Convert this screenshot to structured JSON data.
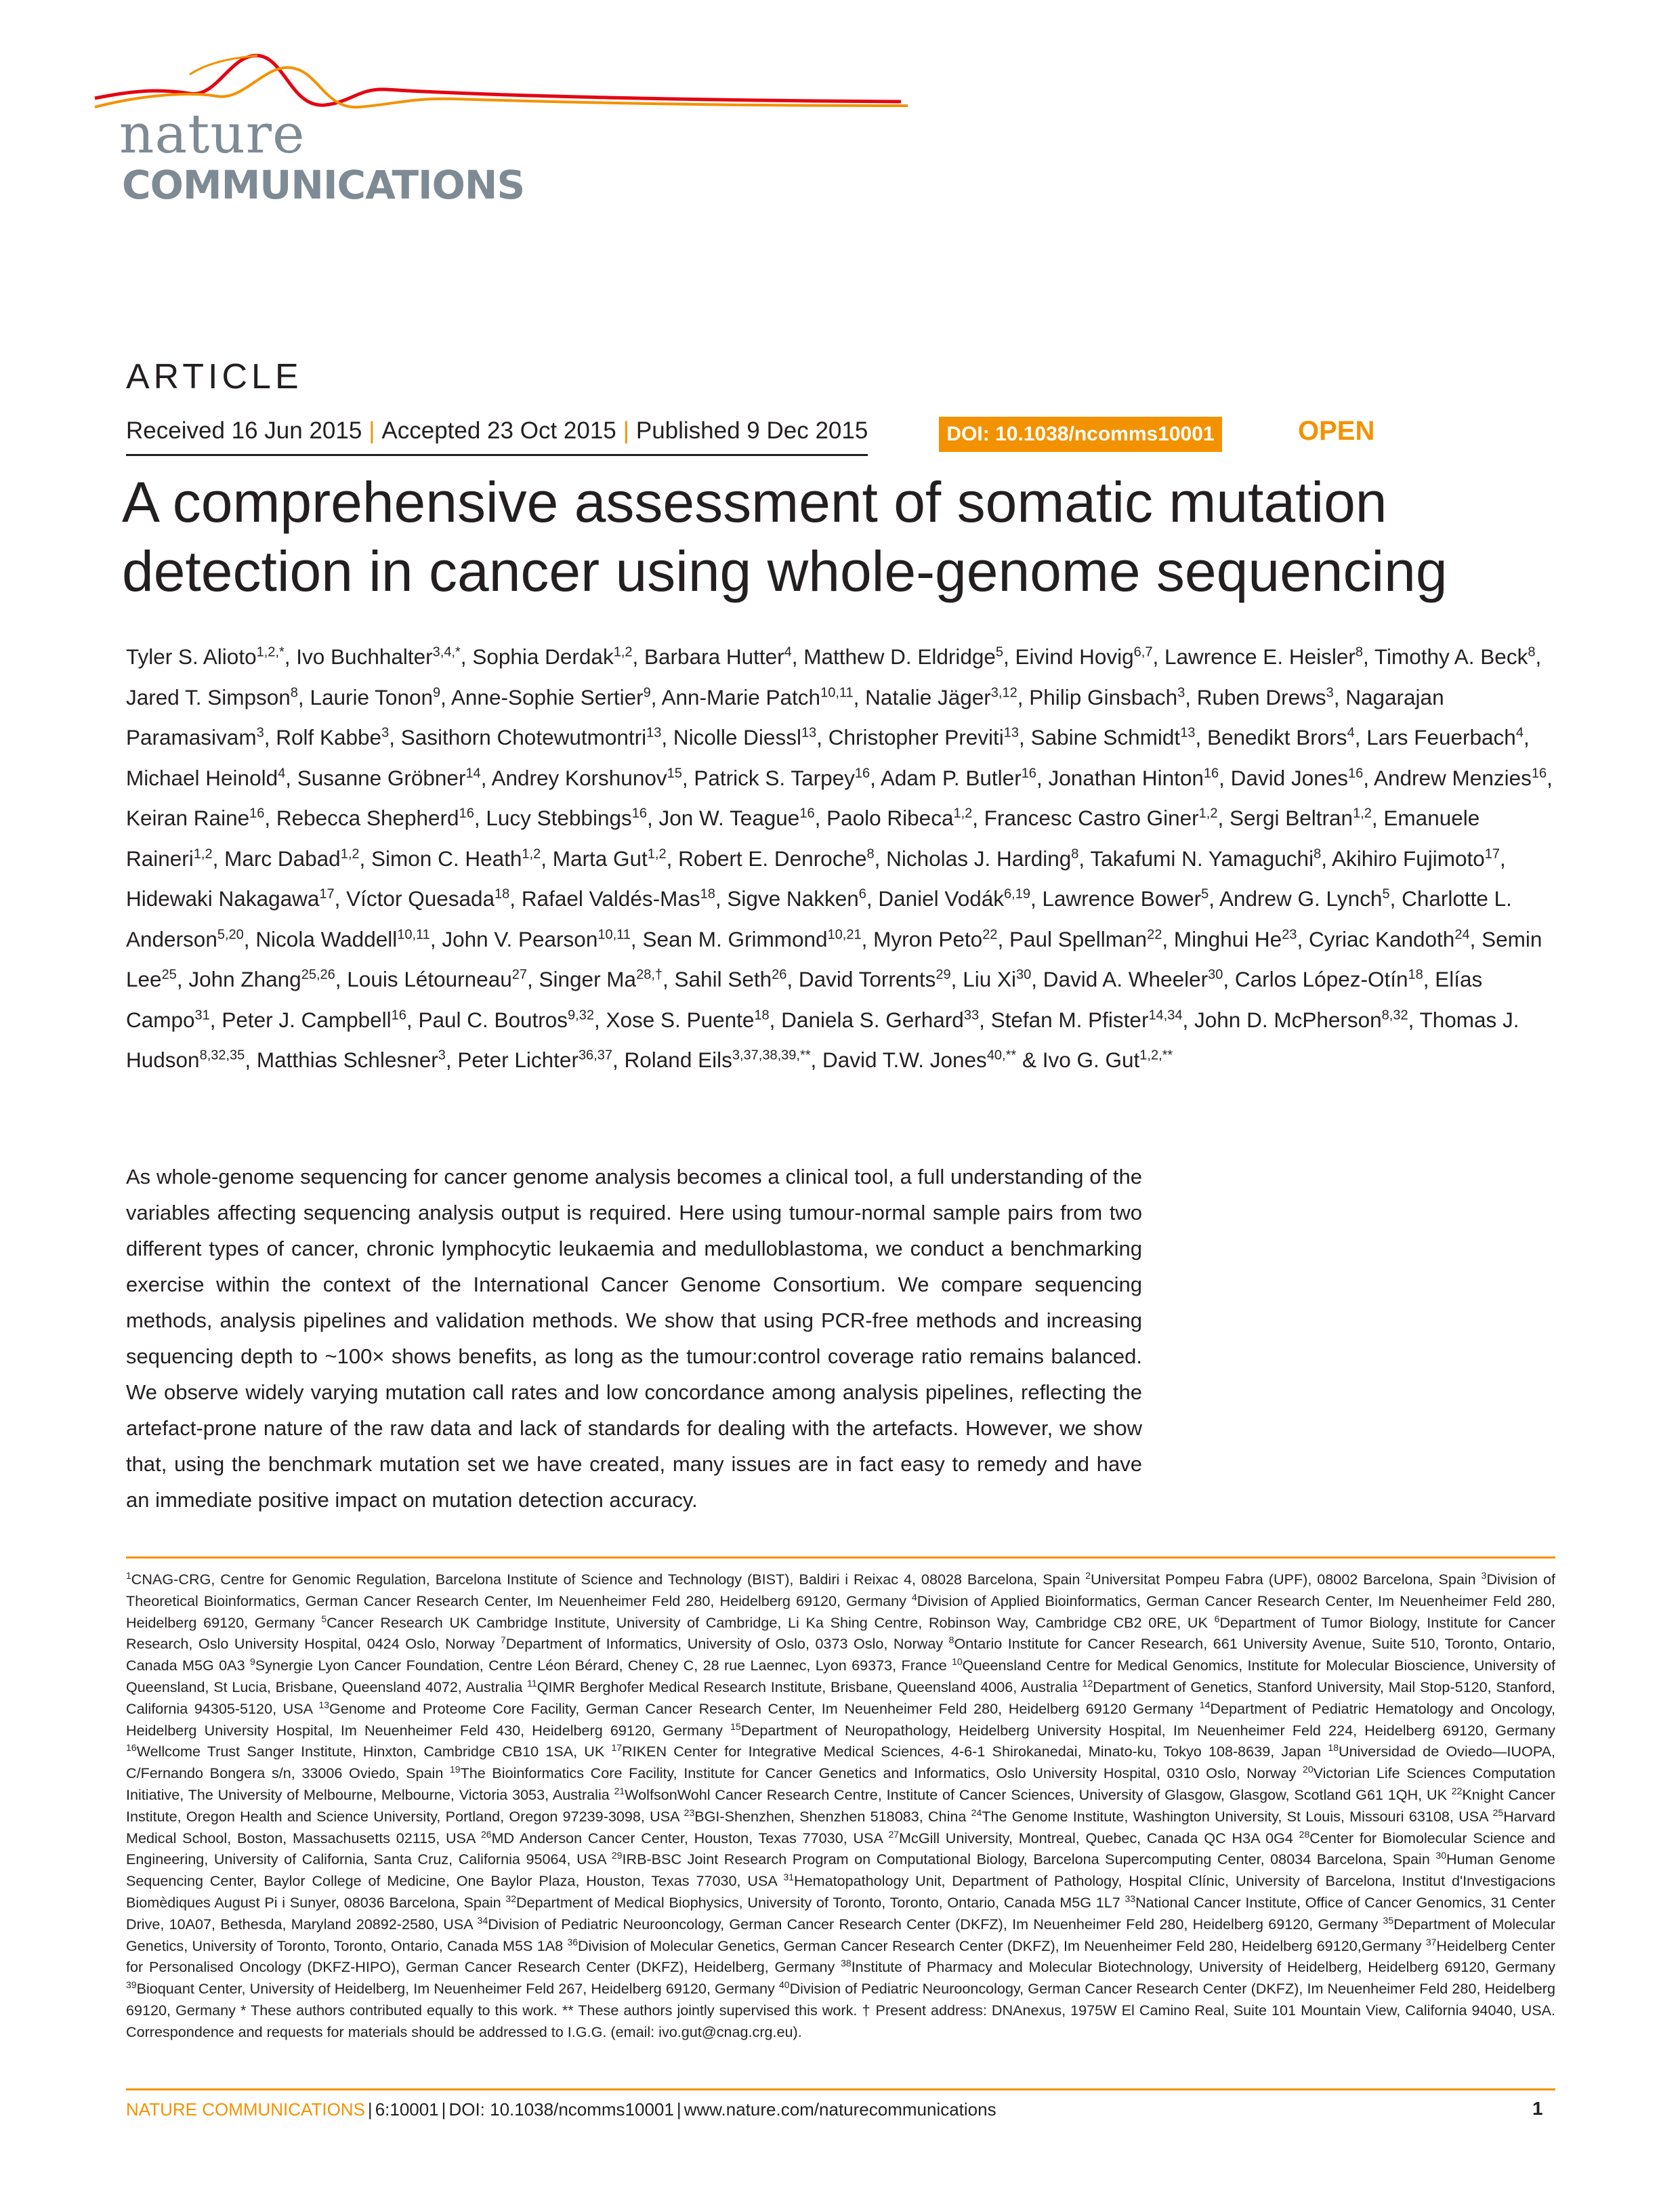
{
  "logo": {
    "line1": "nature",
    "line2": "COMMUNICATIONS",
    "colors": {
      "red": "#e30613",
      "orange": "#f39200",
      "gray": "#7e8a94"
    }
  },
  "header": {
    "section": "ARTICLE",
    "received": "Received 16 Jun 2015",
    "accepted": "Accepted 23 Oct 2015",
    "published": "Published 9 Dec 2015",
    "separator": "|",
    "doi": "DOI: 10.1038/ncomms10001",
    "access": "OPEN",
    "accent_color": "#f39200"
  },
  "title": "A comprehensive assessment of somatic mutation detection in cancer using whole-genome sequencing",
  "authors": [
    {
      "name": "Tyler S. Alioto",
      "sup": "1,2,*"
    },
    {
      "name": "Ivo Buchhalter",
      "sup": "3,4,*"
    },
    {
      "name": "Sophia Derdak",
      "sup": "1,2"
    },
    {
      "name": "Barbara Hutter",
      "sup": "4"
    },
    {
      "name": "Matthew D. Eldridge",
      "sup": "5"
    },
    {
      "name": "Eivind Hovig",
      "sup": "6,7"
    },
    {
      "name": "Lawrence E. Heisler",
      "sup": "8"
    },
    {
      "name": "Timothy A. Beck",
      "sup": "8"
    },
    {
      "name": "Jared T. Simpson",
      "sup": "8"
    },
    {
      "name": "Laurie Tonon",
      "sup": "9"
    },
    {
      "name": "Anne-Sophie Sertier",
      "sup": "9"
    },
    {
      "name": "Ann-Marie Patch",
      "sup": "10,11"
    },
    {
      "name": "Natalie Jäger",
      "sup": "3,12"
    },
    {
      "name": "Philip Ginsbach",
      "sup": "3"
    },
    {
      "name": "Ruben Drews",
      "sup": "3"
    },
    {
      "name": "Nagarajan Paramasivam",
      "sup": "3"
    },
    {
      "name": "Rolf Kabbe",
      "sup": "3"
    },
    {
      "name": "Sasithorn Chotewutmontri",
      "sup": "13"
    },
    {
      "name": "Nicolle Diessl",
      "sup": "13"
    },
    {
      "name": "Christopher Previti",
      "sup": "13"
    },
    {
      "name": "Sabine Schmidt",
      "sup": "13"
    },
    {
      "name": "Benedikt Brors",
      "sup": "4"
    },
    {
      "name": "Lars Feuerbach",
      "sup": "4"
    },
    {
      "name": "Michael Heinold",
      "sup": "4"
    },
    {
      "name": "Susanne Gröbner",
      "sup": "14"
    },
    {
      "name": "Andrey Korshunov",
      "sup": "15"
    },
    {
      "name": "Patrick S. Tarpey",
      "sup": "16"
    },
    {
      "name": "Adam P. Butler",
      "sup": "16"
    },
    {
      "name": "Jonathan Hinton",
      "sup": "16"
    },
    {
      "name": "David Jones",
      "sup": "16"
    },
    {
      "name": "Andrew Menzies",
      "sup": "16"
    },
    {
      "name": "Keiran Raine",
      "sup": "16"
    },
    {
      "name": "Rebecca Shepherd",
      "sup": "16"
    },
    {
      "name": "Lucy Stebbings",
      "sup": "16"
    },
    {
      "name": "Jon W. Teague",
      "sup": "16"
    },
    {
      "name": "Paolo Ribeca",
      "sup": "1,2"
    },
    {
      "name": "Francesc Castro Giner",
      "sup": "1,2"
    },
    {
      "name": "Sergi Beltran",
      "sup": "1,2"
    },
    {
      "name": "Emanuele Raineri",
      "sup": "1,2"
    },
    {
      "name": "Marc Dabad",
      "sup": "1,2"
    },
    {
      "name": "Simon C. Heath",
      "sup": "1,2"
    },
    {
      "name": "Marta Gut",
      "sup": "1,2"
    },
    {
      "name": "Robert E. Denroche",
      "sup": "8"
    },
    {
      "name": "Nicholas J. Harding",
      "sup": "8"
    },
    {
      "name": "Takafumi N. Yamaguchi",
      "sup": "8"
    },
    {
      "name": "Akihiro Fujimoto",
      "sup": "17"
    },
    {
      "name": "Hidewaki Nakagawa",
      "sup": "17"
    },
    {
      "name": "Víctor Quesada",
      "sup": "18"
    },
    {
      "name": "Rafael Valdés-Mas",
      "sup": "18"
    },
    {
      "name": "Sigve Nakken",
      "sup": "6"
    },
    {
      "name": "Daniel Vodák",
      "sup": "6,19"
    },
    {
      "name": "Lawrence Bower",
      "sup": "5"
    },
    {
      "name": "Andrew G. Lynch",
      "sup": "5"
    },
    {
      "name": "Charlotte L. Anderson",
      "sup": "5,20"
    },
    {
      "name": "Nicola Waddell",
      "sup": "10,11"
    },
    {
      "name": "John V. Pearson",
      "sup": "10,11"
    },
    {
      "name": "Sean M. Grimmond",
      "sup": "10,21"
    },
    {
      "name": "Myron Peto",
      "sup": "22"
    },
    {
      "name": "Paul Spellman",
      "sup": "22"
    },
    {
      "name": "Minghui He",
      "sup": "23"
    },
    {
      "name": "Cyriac Kandoth",
      "sup": "24"
    },
    {
      "name": "Semin Lee",
      "sup": "25"
    },
    {
      "name": "John Zhang",
      "sup": "25,26"
    },
    {
      "name": "Louis Létourneau",
      "sup": "27"
    },
    {
      "name": "Singer Ma",
      "sup": "28,†"
    },
    {
      "name": "Sahil Seth",
      "sup": "26"
    },
    {
      "name": "David Torrents",
      "sup": "29"
    },
    {
      "name": "Liu Xi",
      "sup": "30"
    },
    {
      "name": "David A. Wheeler",
      "sup": "30"
    },
    {
      "name": "Carlos López-Otín",
      "sup": "18"
    },
    {
      "name": "Elías Campo",
      "sup": "31"
    },
    {
      "name": "Peter J. Campbell",
      "sup": "16"
    },
    {
      "name": "Paul C. Boutros",
      "sup": "9,32"
    },
    {
      "name": "Xose S. Puente",
      "sup": "18"
    },
    {
      "name": "Daniela S. Gerhard",
      "sup": "33"
    },
    {
      "name": "Stefan M. Pfister",
      "sup": "14,34"
    },
    {
      "name": "John D. McPherson",
      "sup": "8,32"
    },
    {
      "name": "Thomas J. Hudson",
      "sup": "8,32,35"
    },
    {
      "name": "Matthias Schlesner",
      "sup": "3"
    },
    {
      "name": "Peter Lichter",
      "sup": "36,37"
    },
    {
      "name": "Roland Eils",
      "sup": "3,37,38,39,**"
    },
    {
      "name": "David T.W. Jones",
      "sup": "40,**"
    },
    {
      "name": "Ivo G. Gut",
      "sup": "1,2,**"
    }
  ],
  "abstract": "As whole-genome sequencing for cancer genome analysis becomes a clinical tool, a full understanding of the variables affecting sequencing analysis output is required. Here using tumour-normal sample pairs from two different types of cancer, chronic lymphocytic leukaemia and medulloblastoma, we conduct a benchmarking exercise within the context of the International Cancer Genome Consortium. We compare sequencing methods, analysis pipelines and validation methods. We show that using PCR-free methods and increasing sequencing depth to ~100× shows benefits, as long as the tumour:control coverage ratio remains balanced. We observe widely varying mutation call rates and low concordance among analysis pipelines, reflecting the artefact-prone nature of the raw data and lack of standards for dealing with the artefacts. However, we show that, using the benchmark mutation set we have created, many issues are in fact easy to remedy and have an immediate positive impact on mutation detection accuracy.",
  "affiliations": [
    {
      "n": "1",
      "text": "CNAG-CRG, Centre for Genomic Regulation, Barcelona Institute of Science and Technology (BIST), Baldiri i Reixac 4, 08028 Barcelona, Spain"
    },
    {
      "n": "2",
      "text": "Universitat Pompeu Fabra (UPF), 08002 Barcelona, Spain"
    },
    {
      "n": "3",
      "text": "Division of Theoretical Bioinformatics, German Cancer Research Center, Im Neuenheimer Feld 280, Heidelberg 69120, Germany"
    },
    {
      "n": "4",
      "text": "Division of Applied Bioinformatics, German Cancer Research Center, Im Neuenheimer Feld 280, Heidelberg 69120, Germany"
    },
    {
      "n": "5",
      "text": "Cancer Research UK Cambridge Institute, University of Cambridge, Li Ka Shing Centre, Robinson Way, Cambridge CB2 0RE, UK"
    },
    {
      "n": "6",
      "text": "Department of Tumor Biology, Institute for Cancer Research, Oslo University Hospital, 0424 Oslo, Norway"
    },
    {
      "n": "7",
      "text": "Department of Informatics, University of Oslo, 0373 Oslo, Norway"
    },
    {
      "n": "8",
      "text": "Ontario Institute for Cancer Research, 661 University Avenue, Suite 510, Toronto, Ontario, Canada M5G 0A3"
    },
    {
      "n": "9",
      "text": "Synergie Lyon Cancer Foundation, Centre Léon Bérard, Cheney C, 28 rue Laennec, Lyon 69373, France"
    },
    {
      "n": "10",
      "text": "Queensland Centre for Medical Genomics, Institute for Molecular Bioscience, University of Queensland, St Lucia, Brisbane, Queensland 4072, Australia"
    },
    {
      "n": "11",
      "text": "QIMR Berghofer Medical Research Institute, Brisbane, Queensland 4006, Australia"
    },
    {
      "n": "12",
      "text": "Department of Genetics, Stanford University, Mail Stop-5120, Stanford, California 94305-5120, USA"
    },
    {
      "n": "13",
      "text": "Genome and Proteome Core Facility, German Cancer Research Center, Im Neuenheimer Feld 280, Heidelberg 69120 Germany"
    },
    {
      "n": "14",
      "text": "Department of Pediatric Hematology and Oncology, Heidelberg University Hospital, Im Neuenheimer Feld 430, Heidelberg 69120, Germany"
    },
    {
      "n": "15",
      "text": "Department of Neuropathology, Heidelberg University Hospital, Im Neuenheimer Feld 224, Heidelberg 69120, Germany"
    },
    {
      "n": "16",
      "text": "Wellcome Trust Sanger Institute, Hinxton, Cambridge CB10 1SA, UK"
    },
    {
      "n": "17",
      "text": "RIKEN Center for Integrative Medical Sciences, 4-6-1 Shirokanedai, Minato-ku, Tokyo 108-8639, Japan"
    },
    {
      "n": "18",
      "text": "Universidad de Oviedo—IUOPA, C/Fernando Bongera s/n, 33006 Oviedo, Spain"
    },
    {
      "n": "19",
      "text": "The Bioinformatics Core Facility, Institute for Cancer Genetics and Informatics, Oslo University Hospital, 0310 Oslo, Norway"
    },
    {
      "n": "20",
      "text": "Victorian Life Sciences Computation Initiative, The University of Melbourne, Melbourne, Victoria 3053, Australia"
    },
    {
      "n": "21",
      "text": "WolfsonWohl Cancer Research Centre, Institute of Cancer Sciences, University of Glasgow, Glasgow, Scotland G61 1QH, UK"
    },
    {
      "n": "22",
      "text": "Knight Cancer Institute, Oregon Health and Science University, Portland, Oregon 97239-3098, USA"
    },
    {
      "n": "23",
      "text": "BGI-Shenzhen, Shenzhen 518083, China"
    },
    {
      "n": "24",
      "text": "The Genome Institute, Washington University, St Louis, Missouri 63108, USA"
    },
    {
      "n": "25",
      "text": "Harvard Medical School, Boston, Massachusetts 02115, USA"
    },
    {
      "n": "26",
      "text": "MD Anderson Cancer Center, Houston, Texas 77030, USA"
    },
    {
      "n": "27",
      "text": "McGill University, Montreal, Quebec, Canada QC H3A 0G4"
    },
    {
      "n": "28",
      "text": "Center for Biomolecular Science and Engineering, University of California, Santa Cruz, California 95064, USA"
    },
    {
      "n": "29",
      "text": "IRB-BSC Joint Research Program on Computational Biology, Barcelona Supercomputing Center, 08034 Barcelona, Spain"
    },
    {
      "n": "30",
      "text": "Human Genome Sequencing Center, Baylor College of Medicine, One Baylor Plaza, Houston, Texas 77030, USA"
    },
    {
      "n": "31",
      "text": "Hematopathology Unit, Department of Pathology, Hospital Clínic, University of Barcelona, Institut d'Investigacions Biomèdiques August Pi i Sunyer, 08036 Barcelona, Spain"
    },
    {
      "n": "32",
      "text": "Department of Medical Biophysics, University of Toronto, Toronto, Ontario, Canada M5G 1L7"
    },
    {
      "n": "33",
      "text": "National Cancer Institute, Office of Cancer Genomics, 31 Center Drive, 10A07, Bethesda, Maryland 20892-2580, USA"
    },
    {
      "n": "34",
      "text": "Division of Pediatric Neurooncology, German Cancer Research Center (DKFZ), Im Neuenheimer Feld 280, Heidelberg 69120, Germany"
    },
    {
      "n": "35",
      "text": "Department of Molecular Genetics, University of Toronto, Toronto, Ontario, Canada M5S 1A8"
    },
    {
      "n": "36",
      "text": "Division of Molecular Genetics, German Cancer Research Center (DKFZ), Im Neuenheimer Feld 280, Heidelberg 69120,Germany"
    },
    {
      "n": "37",
      "text": "Heidelberg Center for Personalised Oncology (DKFZ-HIPO), German Cancer Research Center (DKFZ), Heidelberg, Germany"
    },
    {
      "n": "38",
      "text": "Institute of Pharmacy and Molecular Biotechnology, University of Heidelberg, Heidelberg 69120, Germany"
    },
    {
      "n": "39",
      "text": "Bioquant Center, University of Heidelberg, Im Neuenheimer Feld 267, Heidelberg 69120, Germany"
    },
    {
      "n": "40",
      "text": "Division of Pediatric Neurooncology, German Cancer Research Center (DKFZ), Im Neuenheimer Feld 280, Heidelberg 69120, Germany"
    }
  ],
  "affiliation_notes": "* These authors contributed equally to this work. ** These authors jointly supervised this work. † Present address: DNAnexus, 1975W El Camino Real, Suite 101 Mountain View, California 94040, USA. Correspondence and requests for materials should be addressed to I.G.G. (email: ivo.gut@cnag.crg.eu).",
  "footer": {
    "journal": "NATURE COMMUNICATIONS",
    "volume": "6:10001",
    "doi": "DOI: 10.1038/ncomms10001",
    "url": "www.nature.com/naturecommunications",
    "page": "1"
  }
}
